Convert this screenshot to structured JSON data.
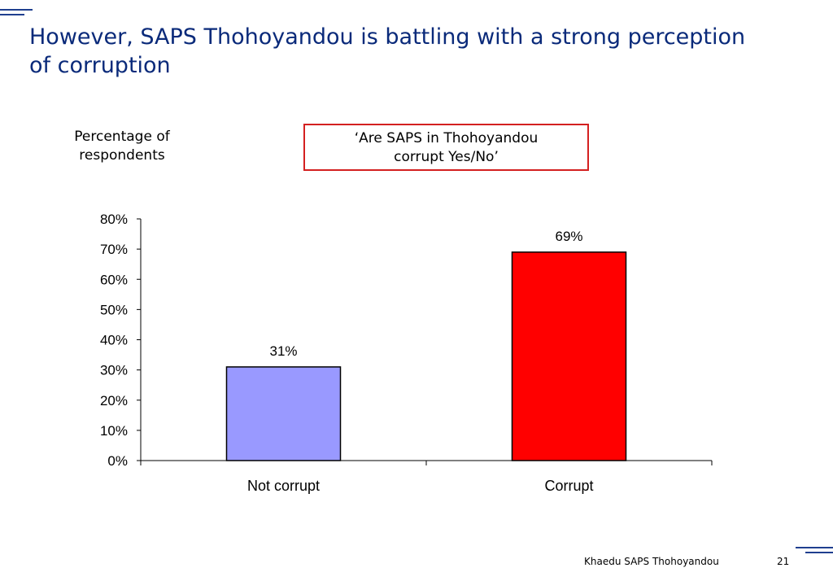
{
  "slide": {
    "title": "However, SAPS Thohoyandou is battling with a strong perception of corruption",
    "y_axis_caption": "Percentage of respondents",
    "question": "‘Are SAPS in Thohoyandou corrupt Yes/No’",
    "footer_text": "Khaedu SAPS Thohoyandou",
    "page_number": "21",
    "accent_color": "#1f3f8f"
  },
  "chart_data": {
    "type": "bar",
    "categories": [
      "Not corrupt",
      "Corrupt"
    ],
    "values": [
      31,
      69
    ],
    "value_labels": [
      "31%",
      "69%"
    ],
    "colors": [
      "#9999ff",
      "#ff0000"
    ],
    "ylim": [
      0,
      80
    ],
    "yticks": [
      0,
      10,
      20,
      30,
      40,
      50,
      60,
      70,
      80
    ],
    "ytick_labels": [
      "0%",
      "10%",
      "20%",
      "30%",
      "40%",
      "50%",
      "60%",
      "70%",
      "80%"
    ],
    "grid": false
  }
}
